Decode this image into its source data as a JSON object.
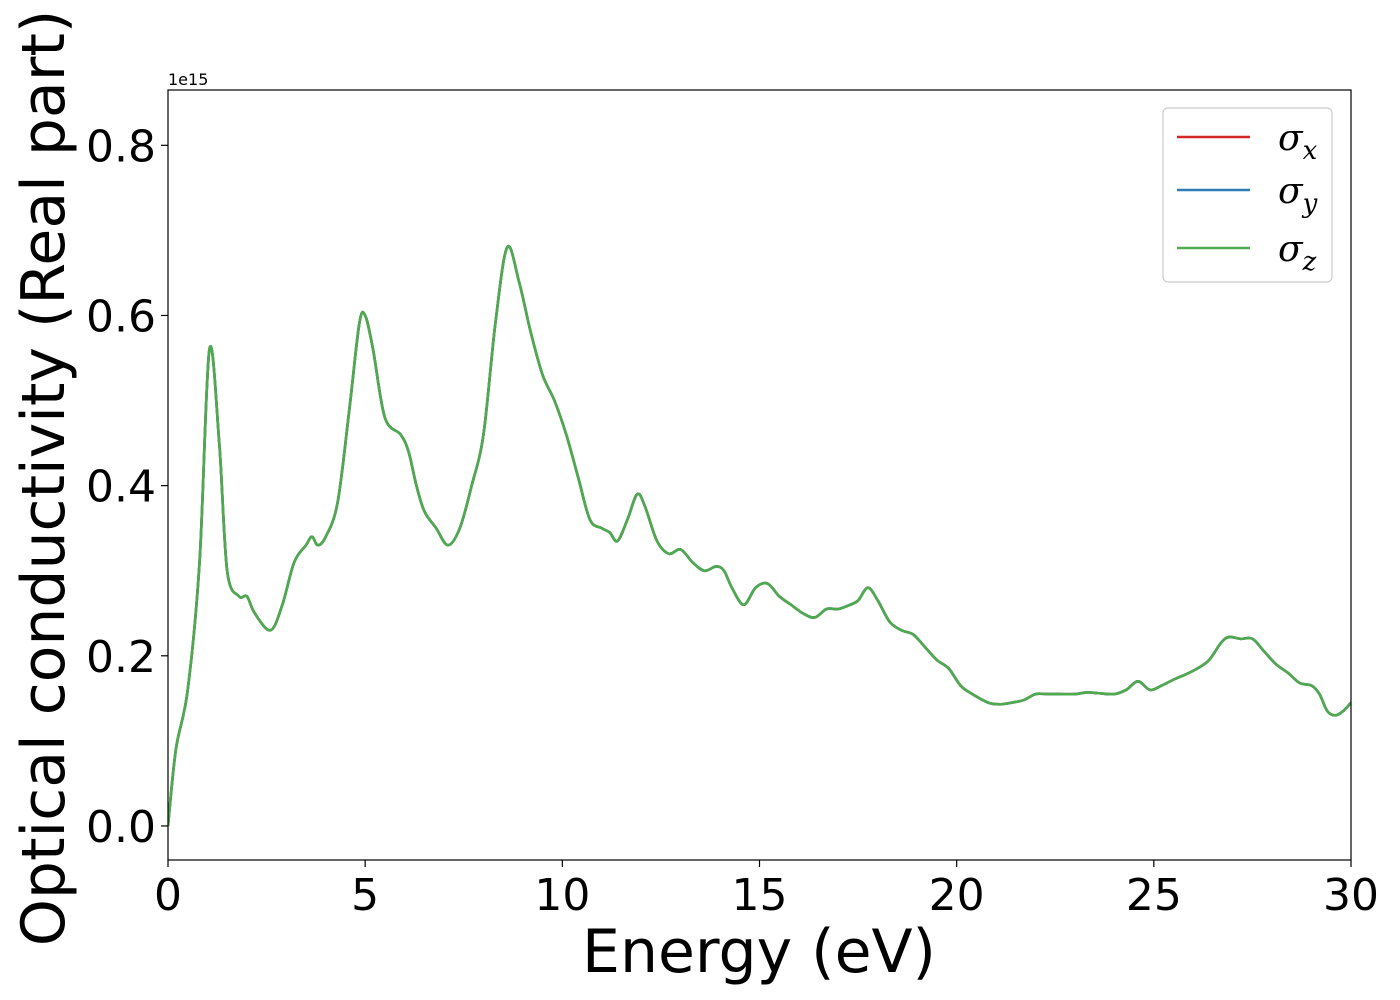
{
  "chart_data": {
    "type": "line",
    "xlabel": "Energy (eV)",
    "ylabel": "Optical conductivity (Real part)",
    "y_offset_label": "1e15",
    "xlim": [
      0,
      30
    ],
    "ylim": [
      -0.04,
      0.865
    ],
    "xticks": [
      0,
      5,
      10,
      15,
      20,
      25,
      30
    ],
    "xtick_labels": [
      "0",
      "5",
      "10",
      "15",
      "20",
      "25",
      "30"
    ],
    "yticks": [
      0.0,
      0.2,
      0.4,
      0.6,
      0.8
    ],
    "ytick_labels": [
      "0.0",
      "0.2",
      "0.4",
      "0.6",
      "0.8"
    ],
    "grid": false,
    "legend_position": "top-right",
    "x": [
      0,
      0.2,
      0.5,
      0.8,
      1.05,
      1.3,
      1.5,
      1.8,
      2.0,
      2.2,
      2.6,
      2.9,
      3.2,
      3.5,
      3.65,
      3.8,
      4.0,
      4.3,
      4.6,
      4.85,
      5.0,
      5.2,
      5.5,
      5.9,
      6.1,
      6.3,
      6.5,
      6.8,
      7.1,
      7.4,
      7.7,
      8.0,
      8.3,
      8.6,
      8.9,
      9.2,
      9.5,
      9.8,
      10.1,
      10.4,
      10.7,
      11.0,
      11.2,
      11.4,
      11.65,
      11.9,
      12.1,
      12.4,
      12.7,
      13.0,
      13.3,
      13.6,
      13.9,
      14.1,
      14.3,
      14.6,
      14.9,
      15.2,
      15.5,
      15.8,
      16.1,
      16.4,
      16.7,
      17.0,
      17.3,
      17.5,
      17.75,
      18.0,
      18.3,
      18.6,
      18.9,
      19.2,
      19.5,
      19.8,
      20.1,
      20.4,
      20.8,
      21.1,
      21.4,
      21.7,
      22.0,
      22.3,
      22.6,
      23.0,
      23.3,
      23.6,
      24.0,
      24.3,
      24.6,
      24.9,
      25.2,
      25.5,
      25.8,
      26.1,
      26.4,
      26.7,
      26.9,
      27.2,
      27.5,
      27.8,
      28.1,
      28.4,
      28.7,
      29.0,
      29.2,
      29.4,
      29.6,
      29.8,
      30.0
    ],
    "series": [
      {
        "name": "σx",
        "legend_main": "σ",
        "legend_sub": "x",
        "color": "#d62728",
        "values": [
          0.0,
          0.09,
          0.16,
          0.31,
          0.56,
          0.45,
          0.3,
          0.27,
          0.27,
          0.25,
          0.23,
          0.26,
          0.31,
          0.33,
          0.34,
          0.33,
          0.34,
          0.38,
          0.49,
          0.59,
          0.6,
          0.56,
          0.48,
          0.46,
          0.44,
          0.4,
          0.37,
          0.35,
          0.33,
          0.35,
          0.4,
          0.46,
          0.59,
          0.68,
          0.64,
          0.58,
          0.53,
          0.5,
          0.46,
          0.41,
          0.36,
          0.35,
          0.345,
          0.335,
          0.36,
          0.39,
          0.375,
          0.335,
          0.32,
          0.325,
          0.31,
          0.3,
          0.305,
          0.3,
          0.28,
          0.26,
          0.28,
          0.285,
          0.27,
          0.26,
          0.25,
          0.245,
          0.255,
          0.255,
          0.26,
          0.265,
          0.28,
          0.265,
          0.24,
          0.23,
          0.225,
          0.21,
          0.195,
          0.185,
          0.165,
          0.155,
          0.145,
          0.143,
          0.145,
          0.148,
          0.155,
          0.155,
          0.155,
          0.155,
          0.157,
          0.156,
          0.155,
          0.16,
          0.17,
          0.16,
          0.165,
          0.172,
          0.178,
          0.185,
          0.195,
          0.215,
          0.222,
          0.22,
          0.22,
          0.205,
          0.19,
          0.18,
          0.168,
          0.165,
          0.155,
          0.135,
          0.13,
          0.135,
          0.145
        ]
      },
      {
        "name": "σy",
        "legend_main": "σ",
        "legend_sub": "y",
        "color": "#2f7bb5",
        "values": [
          0.0,
          0.09,
          0.16,
          0.31,
          0.56,
          0.45,
          0.3,
          0.27,
          0.27,
          0.25,
          0.23,
          0.26,
          0.31,
          0.33,
          0.34,
          0.33,
          0.34,
          0.38,
          0.49,
          0.59,
          0.6,
          0.56,
          0.48,
          0.46,
          0.44,
          0.4,
          0.37,
          0.35,
          0.33,
          0.35,
          0.4,
          0.46,
          0.59,
          0.68,
          0.64,
          0.58,
          0.53,
          0.5,
          0.46,
          0.41,
          0.36,
          0.35,
          0.345,
          0.335,
          0.36,
          0.39,
          0.375,
          0.335,
          0.32,
          0.325,
          0.31,
          0.3,
          0.305,
          0.3,
          0.28,
          0.26,
          0.28,
          0.285,
          0.27,
          0.26,
          0.25,
          0.245,
          0.255,
          0.255,
          0.26,
          0.265,
          0.28,
          0.265,
          0.24,
          0.23,
          0.225,
          0.21,
          0.195,
          0.185,
          0.165,
          0.155,
          0.145,
          0.143,
          0.145,
          0.148,
          0.155,
          0.155,
          0.155,
          0.155,
          0.157,
          0.156,
          0.155,
          0.16,
          0.17,
          0.16,
          0.165,
          0.172,
          0.178,
          0.185,
          0.195,
          0.215,
          0.222,
          0.22,
          0.22,
          0.205,
          0.19,
          0.18,
          0.168,
          0.165,
          0.155,
          0.135,
          0.13,
          0.135,
          0.145
        ]
      },
      {
        "name": "σz",
        "legend_main": "σ",
        "legend_sub": "z",
        "color": "#4dab4d",
        "values": [
          0.0,
          0.09,
          0.16,
          0.31,
          0.56,
          0.45,
          0.3,
          0.27,
          0.27,
          0.25,
          0.23,
          0.26,
          0.31,
          0.33,
          0.34,
          0.33,
          0.34,
          0.38,
          0.49,
          0.59,
          0.6,
          0.56,
          0.48,
          0.46,
          0.44,
          0.4,
          0.37,
          0.35,
          0.33,
          0.35,
          0.4,
          0.46,
          0.59,
          0.68,
          0.64,
          0.58,
          0.53,
          0.5,
          0.46,
          0.41,
          0.36,
          0.35,
          0.345,
          0.335,
          0.36,
          0.39,
          0.375,
          0.335,
          0.32,
          0.325,
          0.31,
          0.3,
          0.305,
          0.3,
          0.28,
          0.26,
          0.28,
          0.285,
          0.27,
          0.26,
          0.25,
          0.245,
          0.255,
          0.255,
          0.26,
          0.265,
          0.28,
          0.265,
          0.24,
          0.23,
          0.225,
          0.21,
          0.195,
          0.185,
          0.165,
          0.155,
          0.145,
          0.143,
          0.145,
          0.148,
          0.155,
          0.155,
          0.155,
          0.155,
          0.157,
          0.156,
          0.155,
          0.16,
          0.17,
          0.16,
          0.165,
          0.172,
          0.178,
          0.185,
          0.195,
          0.215,
          0.222,
          0.22,
          0.22,
          0.205,
          0.19,
          0.18,
          0.168,
          0.165,
          0.155,
          0.135,
          0.13,
          0.135,
          0.145
        ]
      }
    ]
  }
}
